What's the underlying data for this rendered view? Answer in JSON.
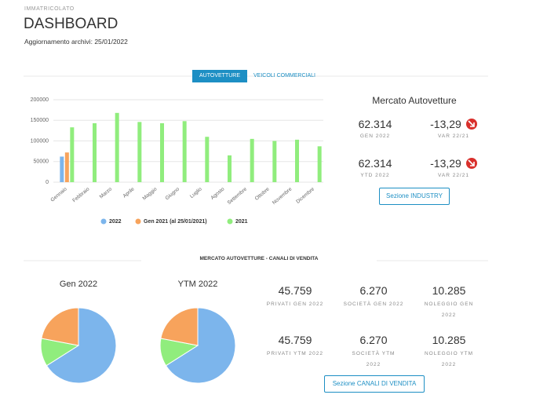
{
  "header": {
    "section": "IMMATRICOLATO",
    "title": "DASHBOARD",
    "update_label": "Aggiornamento archivi:",
    "update_date": "25/01/2022"
  },
  "tabs": {
    "items": [
      "AUTOVETTURE",
      "VEICOLI COMMERCIALI"
    ],
    "active": 0
  },
  "chart_data": [
    {
      "type": "bar",
      "categories": [
        "Gennaio",
        "Febbraio",
        "Marzo",
        "Aprile",
        "Maggio",
        "Giugno",
        "Luglio",
        "Agosto",
        "Settembre",
        "Ottobre",
        "Novembre",
        "Dicembre"
      ],
      "series": [
        {
          "name": "2022",
          "color": "#7cb5ec",
          "values": [
            62000,
            null,
            null,
            null,
            null,
            null,
            null,
            null,
            null,
            null,
            null,
            null
          ]
        },
        {
          "name": "Gen 2021 (al 25/01/2021)",
          "color": "#f7a35c",
          "values": [
            72000,
            null,
            null,
            null,
            null,
            null,
            null,
            null,
            null,
            null,
            null,
            null
          ]
        },
        {
          "name": "2021",
          "color": "#90ed7d",
          "values": [
            133000,
            143000,
            168000,
            146000,
            143000,
            148000,
            110000,
            65000,
            105000,
            100000,
            103000,
            87000
          ]
        }
      ],
      "ylim": [
        0,
        200000
      ],
      "yticks": [
        0,
        50000,
        100000,
        150000,
        200000
      ],
      "grid": true
    },
    {
      "type": "pie",
      "title": "Gen 2022",
      "values": [
        66,
        12,
        22
      ],
      "colors": [
        "#7cb5ec",
        "#90ed7d",
        "#f7a35c"
      ]
    },
    {
      "type": "pie",
      "title": "YTM 2022",
      "values": [
        66,
        12,
        22
      ],
      "colors": [
        "#7cb5ec",
        "#90ed7d",
        "#f7a35c"
      ]
    }
  ],
  "market": {
    "title": "Mercato Autovetture",
    "rows": [
      {
        "value": "62.314",
        "label": "GEN 2022",
        "var": "-13,29",
        "var_label": "VAR 22/21"
      },
      {
        "value": "62.314",
        "label": "YTD 2022",
        "var": "-13,29",
        "var_label": "VAR 22/21"
      }
    ],
    "button": "Sezione INDUSTRY"
  },
  "channels": {
    "title": "MERCATO AUTOVETTURE - CANALI DI VENDITA",
    "rows": [
      [
        {
          "value": "45.759",
          "label": "PRIVATI GEN 2022"
        },
        {
          "value": "6.270",
          "label": "SOCIETÀ GEN 2022"
        },
        {
          "value": "10.285",
          "label": "NOLEGGIO GEN 2022"
        }
      ],
      [
        {
          "value": "45.759",
          "label": "PRIVATI YTM 2022"
        },
        {
          "value": "6.270",
          "label": "SOCIETÀ YTM 2022"
        },
        {
          "value": "10.285",
          "label": "NOLEGGIO YTM 2022"
        }
      ]
    ],
    "button": "Sezione CANALI DI VENDITA"
  }
}
